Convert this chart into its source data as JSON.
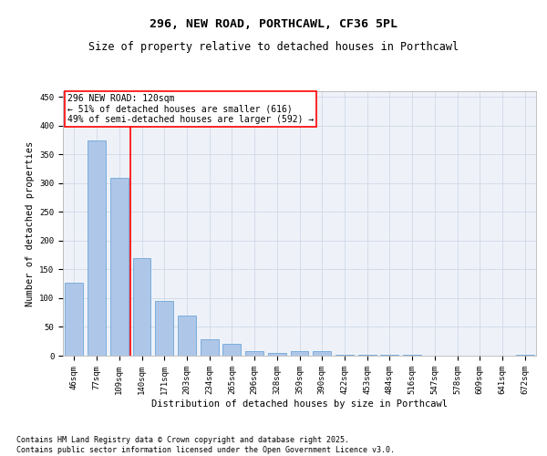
{
  "title1": "296, NEW ROAD, PORTHCAWL, CF36 5PL",
  "title2": "Size of property relative to detached houses in Porthcawl",
  "xlabel": "Distribution of detached houses by size in Porthcawl",
  "ylabel": "Number of detached properties",
  "categories": [
    "46sqm",
    "77sqm",
    "109sqm",
    "140sqm",
    "171sqm",
    "203sqm",
    "234sqm",
    "265sqm",
    "296sqm",
    "328sqm",
    "359sqm",
    "390sqm",
    "422sqm",
    "453sqm",
    "484sqm",
    "516sqm",
    "547sqm",
    "578sqm",
    "609sqm",
    "641sqm",
    "672sqm"
  ],
  "values": [
    127,
    375,
    310,
    170,
    95,
    70,
    28,
    20,
    8,
    5,
    8,
    8,
    2,
    1,
    1,
    1,
    0,
    0,
    0,
    0,
    1
  ],
  "bar_color": "#aec6e8",
  "bar_edge_color": "#5b9bd5",
  "grid_color": "#d0d8e8",
  "background_color": "#eef2f8",
  "annotation_text": "296 NEW ROAD: 120sqm\n← 51% of detached houses are smaller (616)\n49% of semi-detached houses are larger (592) →",
  "redline_x": 2.5,
  "ylim": [
    0,
    460
  ],
  "yticks": [
    0,
    50,
    100,
    150,
    200,
    250,
    300,
    350,
    400,
    450
  ],
  "footnote": "Contains HM Land Registry data © Crown copyright and database right 2025.\nContains public sector information licensed under the Open Government Licence v3.0.",
  "title1_fontsize": 9.5,
  "title2_fontsize": 8.5,
  "xlabel_fontsize": 7.5,
  "ylabel_fontsize": 7.5,
  "tick_fontsize": 6.5,
  "annotation_fontsize": 7,
  "footnote_fontsize": 6
}
